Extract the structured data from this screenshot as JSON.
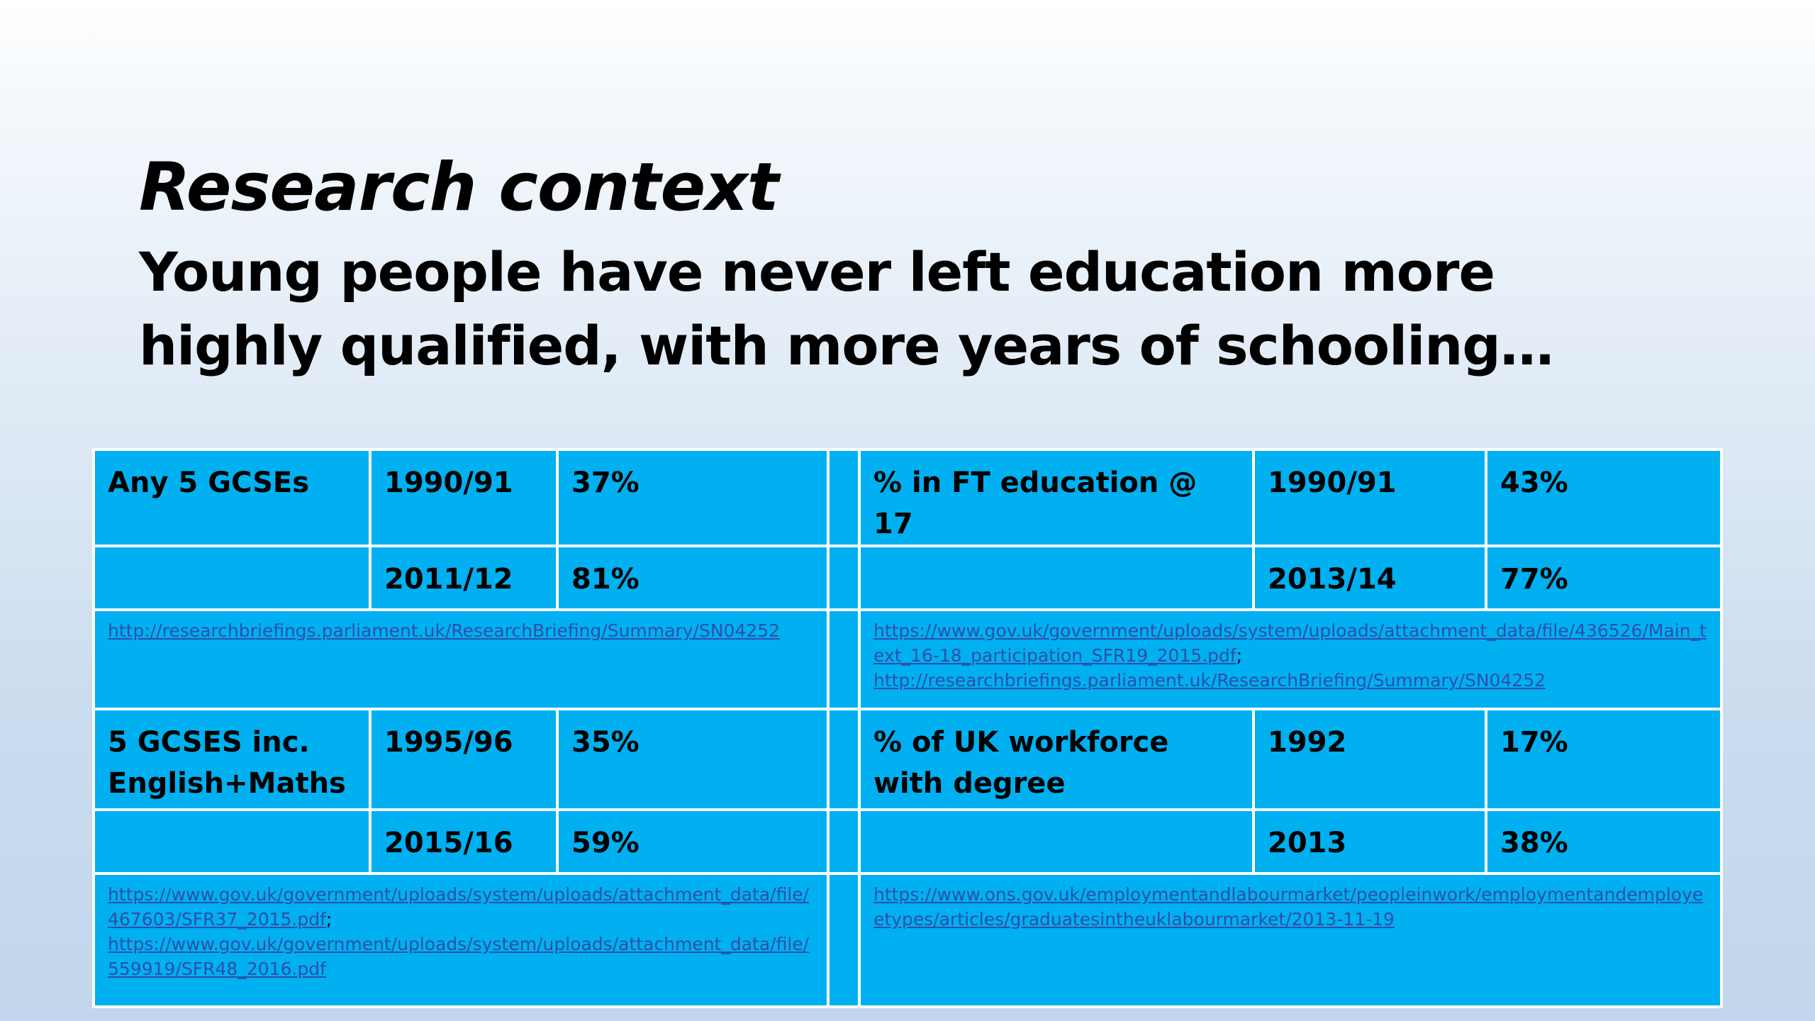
{
  "slide": {
    "title": "Research context",
    "subtitle": "Young people have never left education more highly qualified, with more years of schooling…"
  },
  "table": {
    "gcse5": {
      "label": "Any 5 GCSEs",
      "year1": "1990/91",
      "value1": "37%",
      "year2": "2011/12",
      "value2": "81%"
    },
    "ft_education": {
      "label": "% in FT education @ 17",
      "year1": "1990/91",
      "value1": "43%",
      "year2": "2013/14",
      "value2": "77%"
    },
    "gcse_eng_maths": {
      "label": "5 GCSES inc. English+Maths",
      "year1": "1995/96",
      "value1": "35%",
      "year2": "2015/16",
      "value2": "59%"
    },
    "degree_workforce": {
      "label": "% of UK workforce with degree",
      "year1": "1992",
      "value1": "17%",
      "year2": "2013",
      "value2": "38%"
    },
    "sources": {
      "gcse5": [
        "http://researchbriefings.parliament.uk/ResearchBriefing/Summary/SN04252"
      ],
      "ft_education": [
        "https://www.gov.uk/government/uploads/system/uploads/attachment_data/file/436526/Main_text_16-18_participation_SFR19_2015.pdf",
        "http://researchbriefings.parliament.uk/ResearchBriefing/Summary/SN04252"
      ],
      "gcse_eng_maths": [
        "https://www.gov.uk/government/uploads/system/uploads/attachment_data/file/467603/SFR37_2015.pdf",
        "https://www.gov.uk/government/uploads/system/uploads/attachment_data/file/559919/SFR48_2016.pdf"
      ],
      "degree_workforce": [
        "https://www.ons.gov.uk/employmentandlabourmarket/peopleinwork/employmentandemployeetypes/articles/graduatesintheuklabourmarket/2013-11-19"
      ],
      "separator": ";"
    }
  }
}
